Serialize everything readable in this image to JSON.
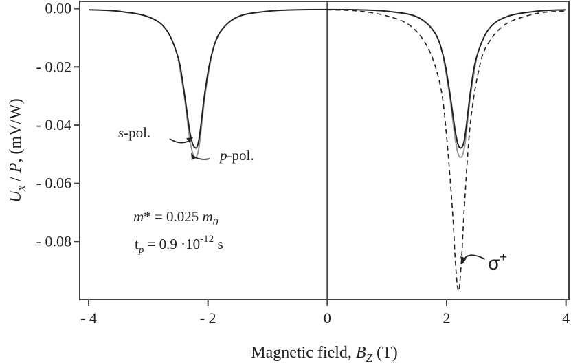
{
  "chart_data": {
    "type": "line",
    "xlabel": "Magnetic field, B_Z (T)",
    "ylabel": "U_x / P,  (mV/W)",
    "xlim": [
      -4.15,
      4.05
    ],
    "ylim": [
      -0.1,
      0.0025
    ],
    "x_ticks": [
      -4,
      -2,
      0,
      2,
      4
    ],
    "x_tick_labels": [
      "- 4",
      "- 2",
      "0",
      "2",
      "4"
    ],
    "y_ticks": [
      0.0,
      -0.02,
      -0.04,
      -0.06,
      -0.08
    ],
    "y_tick_labels": [
      "0.00",
      "- 0.02",
      "- 0.04",
      "- 0.06",
      "- 0.08"
    ],
    "grid": false,
    "vertical_line_at_x": 0,
    "series": [
      {
        "name": "s-pol.",
        "style": "solid",
        "color": "#222222",
        "x": [
          -4.0,
          -3.5,
          -3.0,
          -2.7,
          -2.5,
          -2.4,
          -2.3,
          -2.22,
          -2.15,
          -2.05,
          -1.95,
          -1.8,
          -1.5,
          -1.0,
          -0.5,
          0.0,
          0.5,
          1.0,
          1.5,
          1.8,
          1.95,
          2.05,
          2.15,
          2.22,
          2.3,
          2.4,
          2.5,
          2.7,
          3.0,
          3.5,
          4.0
        ],
        "y": [
          -0.0004,
          -0.0009,
          -0.0028,
          -0.0072,
          -0.0168,
          -0.0285,
          -0.0428,
          -0.0478,
          -0.0448,
          -0.0285,
          -0.0168,
          -0.0082,
          -0.0028,
          -0.0009,
          -0.0004,
          -0.0003,
          -0.0004,
          -0.0009,
          -0.0028,
          -0.0082,
          -0.0168,
          -0.0285,
          -0.0428,
          -0.0478,
          -0.0448,
          -0.0285,
          -0.0168,
          -0.0072,
          -0.0028,
          -0.0009,
          -0.0004
        ]
      },
      {
        "name": "p-pol.",
        "style": "solid",
        "color": "#999999",
        "x": [
          -2.5,
          -2.4,
          -2.3,
          -2.22,
          -2.15,
          -2.05,
          -1.95,
          1.95,
          2.05,
          2.15,
          2.22,
          2.3,
          2.4,
          2.5
        ],
        "y": [
          -0.0172,
          -0.0295,
          -0.0455,
          -0.051,
          -0.0475,
          -0.0298,
          -0.0172,
          -0.0172,
          -0.0298,
          -0.0455,
          -0.051,
          -0.0475,
          -0.0298,
          -0.0172
        ]
      },
      {
        "name": "σ+",
        "style": "dashed",
        "color": "#222222",
        "x": [
          -4.0,
          -2.0,
          0.0,
          0.5,
          1.0,
          1.4,
          1.7,
          1.9,
          2.0,
          2.1,
          2.15,
          2.2,
          2.25,
          2.3,
          2.4,
          2.55,
          2.7,
          3.0,
          3.5,
          4.0
        ],
        "y": [
          0.0,
          0.0,
          -0.0004,
          -0.0008,
          -0.0025,
          -0.006,
          -0.014,
          -0.027,
          -0.044,
          -0.07,
          -0.088,
          -0.097,
          -0.086,
          -0.067,
          -0.039,
          -0.02,
          -0.0118,
          -0.0052,
          -0.0017,
          -0.0008
        ]
      }
    ],
    "annotations": {
      "s_pol": {
        "italic": "s",
        "text": "-pol."
      },
      "p_pol": {
        "italic": "p",
        "text": "-pol."
      },
      "sigma": {
        "main": "σ",
        "sup": "+"
      },
      "mass": {
        "lhs": "m",
        "mid": "* = 0.025 ",
        "rhs": "m",
        "sub": "0"
      },
      "tau": {
        "lhs": "t",
        "sub": "p",
        "mid": " = 0.9 ·10",
        "sup": "-12",
        "unit": " s"
      }
    },
    "axis_title_parts": {
      "x_main": "Magnetic field, ",
      "x_sym": "B",
      "x_sub": "Z",
      "x_unit": " (T)",
      "y_sym1": "U",
      "y_sub1": "x",
      "y_mid": " / ",
      "y_sym2": "P",
      "y_unit": ",  (mV/W)"
    }
  }
}
